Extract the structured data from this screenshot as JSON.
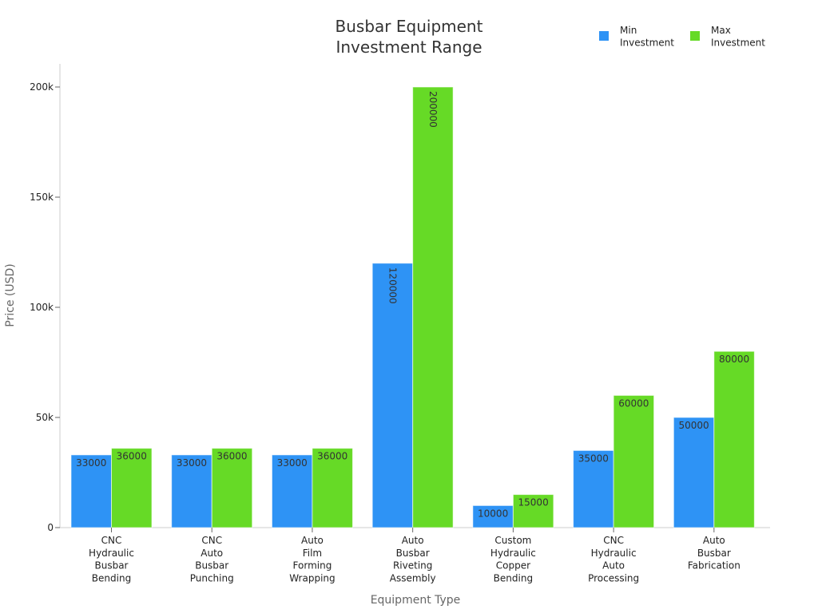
{
  "chart_data": {
    "type": "bar",
    "title": "Busbar Equipment\nInvestment Range",
    "xlabel": "Equipment Type",
    "ylabel": "Price (USD)",
    "ylim": [
      0,
      210000
    ],
    "yticks": [
      0,
      50000,
      100000,
      150000,
      200000
    ],
    "ytick_labels": [
      "0",
      "50k",
      "100k",
      "150k",
      "200k"
    ],
    "grid": false,
    "legend_position": "top-right",
    "categories": [
      "CNC\nHydraulic\nBusbar\nBending",
      "CNC\nAuto\nBusbar\nPunching",
      "Auto\nFilm\nForming\nWrapping",
      "Auto\nBusbar\nRiveting\nAssembly",
      "Custom\nHydraulic\nCopper\nBending",
      "CNC\nHydraulic\nAuto\nProcessing",
      "Auto\nBusbar\nFabrication"
    ],
    "series": [
      {
        "name": "Min\nInvestment",
        "color": "#2e93f5",
        "values": [
          33000,
          33000,
          33000,
          120000,
          10000,
          35000,
          50000
        ]
      },
      {
        "name": "Max\nInvestment",
        "color": "#66da26",
        "values": [
          36000,
          36000,
          36000,
          200000,
          15000,
          60000,
          80000
        ]
      }
    ]
  }
}
